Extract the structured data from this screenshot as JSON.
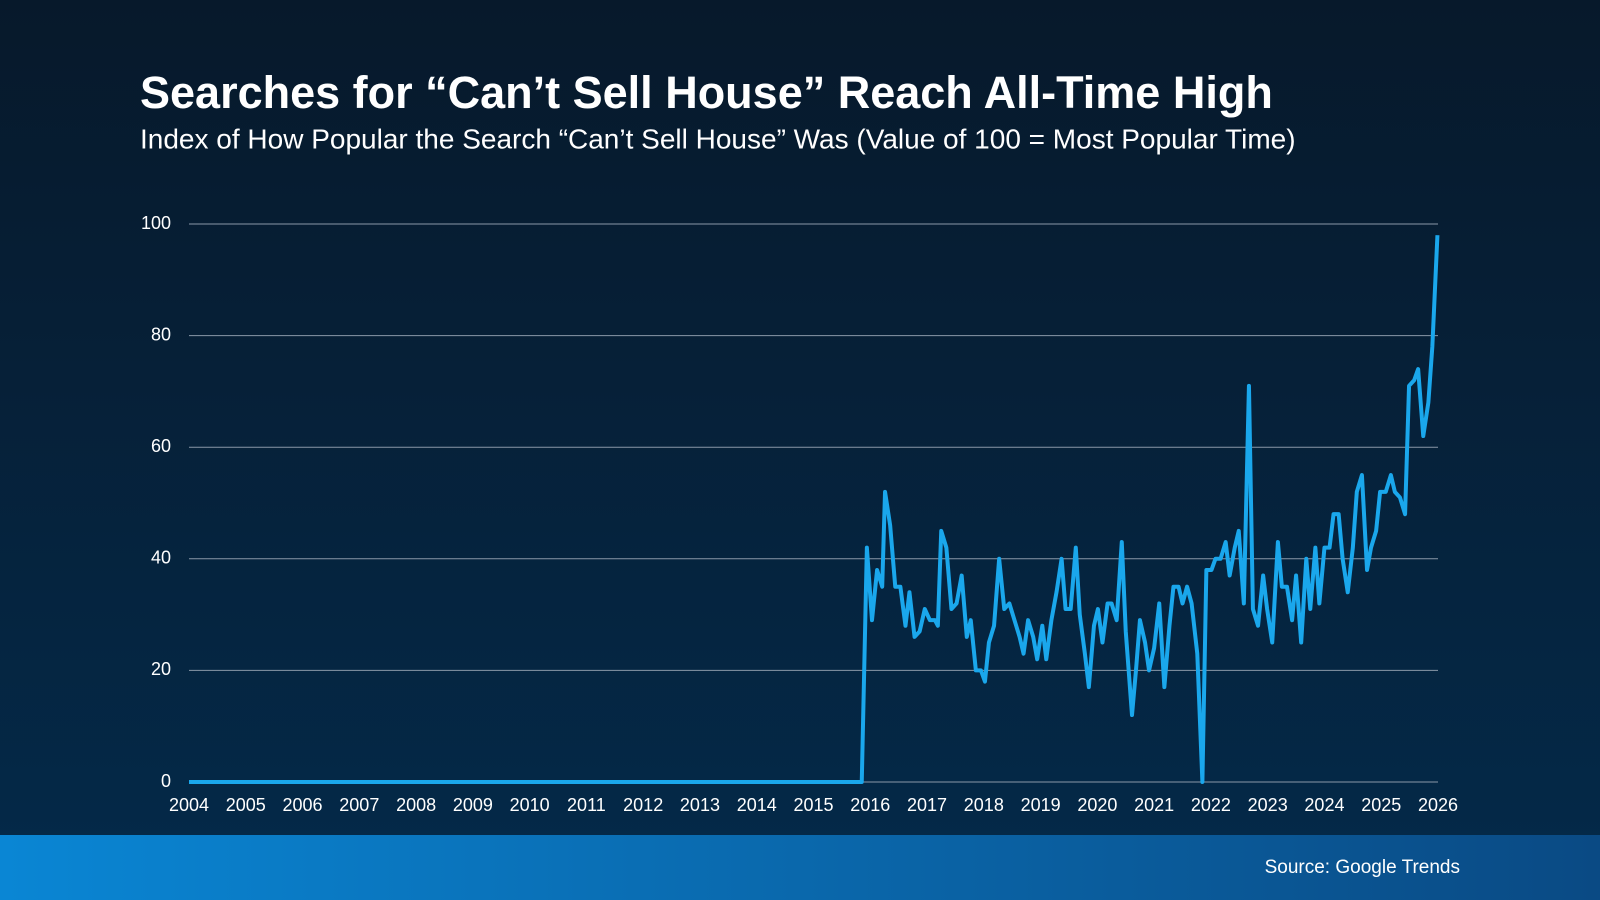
{
  "chart_data": {
    "type": "line",
    "title": "Searches for “Can’t Sell House” Reach All-Time High",
    "subtitle": "Index of How Popular the Search “Can’t Sell House” Was (Value of 100 = Most Popular Time)",
    "source": "Source: Google Trends",
    "grid": true,
    "xlim": [
      2004,
      2026
    ],
    "xticks": [
      2004,
      2005,
      2006,
      2007,
      2008,
      2009,
      2010,
      2011,
      2012,
      2013,
      2014,
      2015,
      2016,
      2017,
      2018,
      2019,
      2020,
      2021,
      2022,
      2023,
      2024,
      2025,
      2026
    ],
    "ylim": [
      0,
      100
    ],
    "yticks": [
      0,
      20,
      40,
      60,
      80,
      100
    ],
    "x": [
      2004,
      2015.85,
      2015.94,
      2016.03,
      2016.12,
      2016.21,
      2016.26,
      2016.35,
      2016.44,
      2016.53,
      2016.62,
      2016.69,
      2016.78,
      2016.87,
      2016.96,
      2017.05,
      2017.14,
      2017.19,
      2017.25,
      2017.34,
      2017.43,
      2017.52,
      2017.61,
      2017.7,
      2017.77,
      2017.86,
      2017.95,
      2018.02,
      2018.09,
      2018.18,
      2018.27,
      2018.36,
      2018.45,
      2018.54,
      2018.63,
      2018.7,
      2018.78,
      2018.87,
      2018.94,
      2019.03,
      2019.1,
      2019.19,
      2019.28,
      2019.37,
      2019.44,
      2019.53,
      2019.62,
      2019.69,
      2019.78,
      2019.85,
      2019.94,
      2020.01,
      2020.09,
      2020.18,
      2020.25,
      2020.34,
      2020.43,
      2020.5,
      2020.61,
      2020.68,
      2020.75,
      2020.84,
      2020.91,
      2021.0,
      2021.09,
      2021.18,
      2021.27,
      2021.34,
      2021.43,
      2021.5,
      2021.58,
      2021.66,
      2021.76,
      2021.85,
      2021.92,
      2022.01,
      2022.08,
      2022.17,
      2022.26,
      2022.33,
      2022.42,
      2022.49,
      2022.58,
      2022.67,
      2022.74,
      2022.83,
      2022.92,
      2022.99,
      2023.08,
      2023.18,
      2023.25,
      2023.34,
      2023.43,
      2023.5,
      2023.59,
      2023.68,
      2023.75,
      2023.84,
      2023.91,
      2024.0,
      2024.09,
      2024.16,
      2024.25,
      2024.32,
      2024.41,
      2024.5,
      2024.57,
      2024.66,
      2024.75,
      2024.82,
      2024.91,
      2024.98,
      2025.08,
      2025.17,
      2025.24,
      2025.33,
      2025.42,
      2025.49,
      2025.58,
      2025.65,
      2025.74,
      2025.83,
      2025.9,
      2025.99
    ],
    "series": [
      {
        "color": "#1aa7ec",
        "values": [
          0,
          0,
          42,
          29,
          38,
          35,
          52,
          46,
          35,
          35,
          28,
          34,
          26,
          27,
          31,
          29,
          29,
          28,
          45,
          42,
          31,
          32,
          37,
          26,
          29,
          20,
          20,
          18,
          25,
          28,
          40,
          31,
          32,
          29,
          26,
          23,
          29,
          26,
          22,
          28,
          22,
          29,
          34,
          40,
          31,
          31,
          42,
          30,
          23,
          17,
          28,
          31,
          25,
          32,
          32,
          29,
          43,
          27,
          12,
          20,
          29,
          25,
          20,
          24,
          32,
          17,
          28,
          35,
          35,
          32,
          35,
          32,
          23,
          0,
          38,
          38,
          40,
          40,
          43,
          37,
          42,
          45,
          32,
          71,
          31,
          28,
          37,
          31,
          25,
          43,
          35,
          35,
          29,
          37,
          25,
          40,
          31,
          42,
          32,
          42,
          42,
          48,
          48,
          40,
          34,
          42,
          52,
          55,
          38,
          42,
          45,
          52,
          52,
          55,
          52,
          51,
          48,
          71,
          72,
          74,
          62,
          68,
          78,
          98
        ]
      }
    ]
  }
}
